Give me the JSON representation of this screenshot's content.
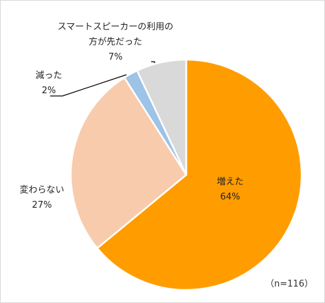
{
  "chart_data": {
    "type": "pie",
    "title": "",
    "note": "（n=116）",
    "slices": [
      {
        "name": "増えた",
        "value": 64,
        "label": "64%",
        "color": "#FF9C00"
      },
      {
        "name": "変わらない",
        "value": 27,
        "label": "27%",
        "color": "#F8CBAD"
      },
      {
        "name": "減った",
        "value": 2,
        "label": "2%",
        "color": "#9DC3E6"
      },
      {
        "name": "スマートスピーカーの利用の方が先だった",
        "value": 7,
        "label": "7%",
        "color": "#D9D9D9"
      }
    ],
    "start_angle_deg": 0,
    "direction": "clockwise",
    "legend": "none"
  },
  "labels": {
    "increased": {
      "line1": "増えた",
      "line2": "64%"
    },
    "unchanged": {
      "line1": "変わらない",
      "line2": "27%"
    },
    "decreased": {
      "line1": "減った",
      "line2": "2%"
    },
    "smart_speaker_first": {
      "line1": "スマートスピーカーの利用の",
      "line2": "方が先だった",
      "line3": "7%"
    }
  }
}
